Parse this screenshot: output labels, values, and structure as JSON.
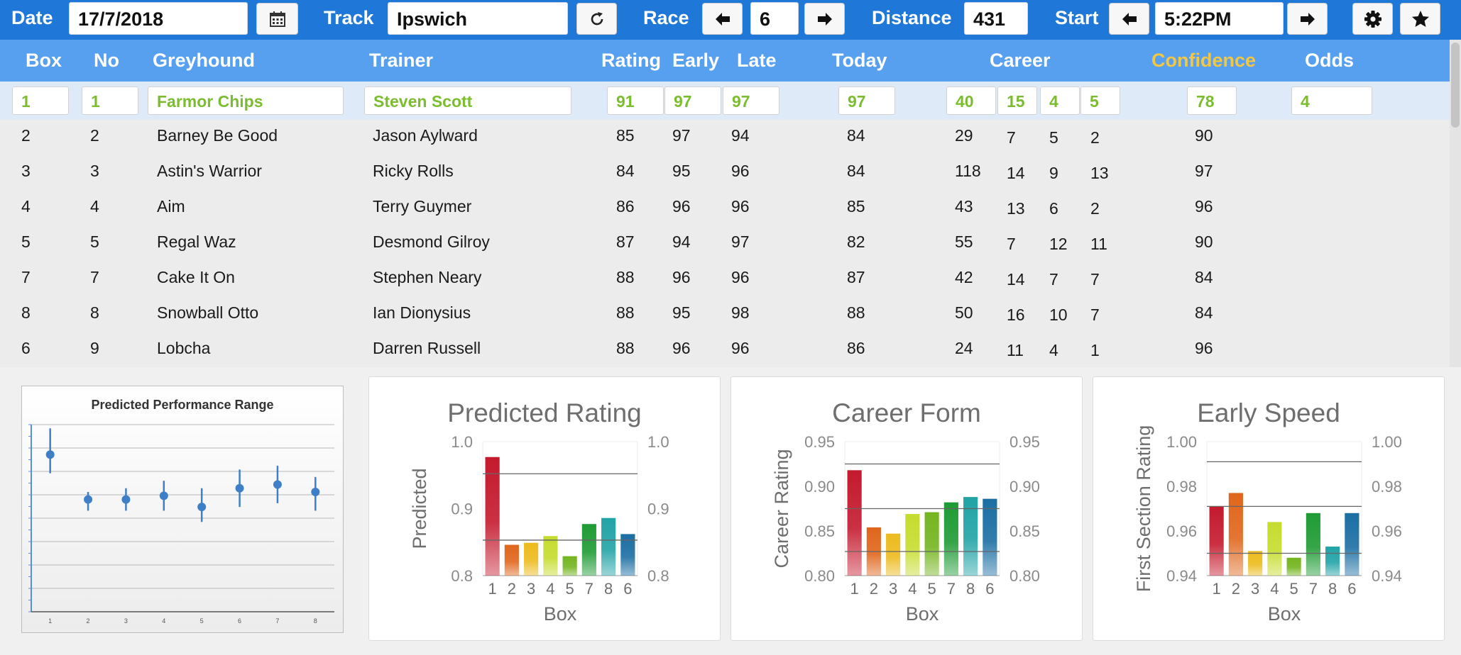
{
  "toolbar": {
    "date_label": "Date",
    "date_value": "17/7/2018",
    "track_label": "Track",
    "track_value": "Ipswich",
    "race_label": "Race",
    "race_value": "6",
    "distance_label": "Distance",
    "distance_value": "431",
    "start_label": "Start",
    "start_value": "5:22PM",
    "icons": [
      "calendar-icon",
      "refresh-icon",
      "arrow-left-icon",
      "arrow-right-icon",
      "gear-icon",
      "star-icon"
    ]
  },
  "table": {
    "headers": {
      "box": "Box",
      "no": "No",
      "greyhound": "Greyhound",
      "trainer": "Trainer",
      "rating": "Rating",
      "early": "Early",
      "late": "Late",
      "today": "Today",
      "career": "Career",
      "confidence": "Confidence",
      "odds": "Odds"
    },
    "selected": {
      "box": "1",
      "no": "1",
      "greyhound": "Farmor Chips",
      "trainer": "Steven Scott",
      "rating": "91",
      "early": "97",
      "late": "97",
      "today": "97",
      "career": [
        "40",
        "15",
        "4",
        "5"
      ],
      "confidence": "78",
      "odds": "4"
    },
    "rows": [
      {
        "box": "2",
        "no": "2",
        "greyhound": "Barney Be Good",
        "trainer": "Jason Aylward",
        "rating": "85",
        "early": "97",
        "late": "94",
        "today": "84",
        "career": [
          "29",
          "7",
          "5",
          "2"
        ],
        "confidence": "90"
      },
      {
        "box": "3",
        "no": "3",
        "greyhound": "Astin's Warrior",
        "trainer": "Ricky Rolls",
        "rating": "84",
        "early": "95",
        "late": "96",
        "today": "84",
        "career": [
          "118",
          "14",
          "9",
          "13"
        ],
        "confidence": "97"
      },
      {
        "box": "4",
        "no": "4",
        "greyhound": "Aim",
        "trainer": "Terry Guymer",
        "rating": "86",
        "early": "96",
        "late": "96",
        "today": "85",
        "career": [
          "43",
          "13",
          "6",
          "2"
        ],
        "confidence": "96"
      },
      {
        "box": "5",
        "no": "5",
        "greyhound": "Regal Waz",
        "trainer": "Desmond Gilroy",
        "rating": "87",
        "early": "94",
        "late": "97",
        "today": "82",
        "career": [
          "55",
          "7",
          "12",
          "11"
        ],
        "confidence": "90"
      },
      {
        "box": "7",
        "no": "7",
        "greyhound": "Cake It On",
        "trainer": "Stephen Neary",
        "rating": "88",
        "early": "96",
        "late": "96",
        "today": "87",
        "career": [
          "42",
          "14",
          "7",
          "7"
        ],
        "confidence": "84"
      },
      {
        "box": "8",
        "no": "8",
        "greyhound": "Snowball Otto",
        "trainer": "Ian Dionysius",
        "rating": "88",
        "early": "95",
        "late": "98",
        "today": "88",
        "career": [
          "50",
          "16",
          "10",
          "7"
        ],
        "confidence": "84"
      },
      {
        "box": "6",
        "no": "9",
        "greyhound": "Lobcha",
        "trainer": "Darren Russell",
        "rating": "88",
        "early": "96",
        "late": "96",
        "today": "86",
        "career": [
          "24",
          "11",
          "4",
          "1"
        ],
        "confidence": "96"
      }
    ]
  },
  "bar_colors": [
    "#c41a2e",
    "#e0661c",
    "#ecbb1e",
    "#c6dc2e",
    "#74b520",
    "#1f9b35",
    "#22a3a6",
    "#1b6ea3"
  ],
  "chart_data": [
    {
      "type": "scatter",
      "title": "Predicted Performance Range",
      "x": [
        "1",
        "2",
        "3",
        "4",
        "5",
        "6",
        "7",
        "8"
      ],
      "y": [
        0.82,
        0.7,
        0.7,
        0.71,
        0.68,
        0.73,
        0.74,
        0.72
      ],
      "y_high": [
        0.89,
        0.72,
        0.73,
        0.75,
        0.73,
        0.78,
        0.79,
        0.76
      ],
      "y_low": [
        0.77,
        0.67,
        0.67,
        0.67,
        0.64,
        0.68,
        0.69,
        0.67
      ],
      "ylim": [
        0.4,
        0.9
      ],
      "grid": true
    },
    {
      "type": "bar",
      "title": "Predicted Rating",
      "xlabel": "Box",
      "ylabel": "Predicted",
      "categories": [
        "1",
        "2",
        "3",
        "4",
        "5",
        "6",
        "7",
        "8"
      ],
      "category_labels": [
        "1",
        "2",
        "3",
        "4",
        "5",
        "7",
        "8",
        "6"
      ],
      "values": [
        0.977,
        0.846,
        0.849,
        0.859,
        0.829,
        0.877,
        0.886,
        0.862
      ],
      "ylim": [
        0.8,
        1.0
      ],
      "yticks": [
        "0.8",
        "0.9",
        "1.0"
      ],
      "ref_lines": [
        0.853,
        0.952
      ],
      "grid": false
    },
    {
      "type": "bar",
      "title": "Career Form",
      "xlabel": "Box",
      "ylabel": "Career Rating",
      "categories": [
        "1",
        "2",
        "3",
        "4",
        "5",
        "6",
        "7",
        "8"
      ],
      "category_labels": [
        "1",
        "2",
        "3",
        "4",
        "5",
        "7",
        "8",
        "6"
      ],
      "values": [
        0.918,
        0.854,
        0.847,
        0.869,
        0.871,
        0.882,
        0.888,
        0.886
      ],
      "ylim": [
        0.8,
        0.95
      ],
      "yticks": [
        "0.80",
        "0.85",
        "0.90",
        "0.95"
      ],
      "ref_lines": [
        0.827,
        0.875,
        0.925
      ],
      "grid": false
    },
    {
      "type": "bar",
      "title": "Early Speed",
      "xlabel": "Box",
      "ylabel": "First Section Rating",
      "categories": [
        "1",
        "2",
        "3",
        "4",
        "5",
        "6",
        "7",
        "8"
      ],
      "category_labels": [
        "1",
        "2",
        "3",
        "4",
        "5",
        "7",
        "8",
        "6"
      ],
      "values": [
        0.971,
        0.977,
        0.951,
        0.964,
        0.948,
        0.968,
        0.953,
        0.968
      ],
      "ylim": [
        0.94,
        1.0
      ],
      "yticks": [
        "0.94",
        "0.96",
        "0.98",
        "1.00"
      ],
      "ref_lines": [
        0.95,
        0.971,
        0.991
      ],
      "grid": false
    }
  ]
}
